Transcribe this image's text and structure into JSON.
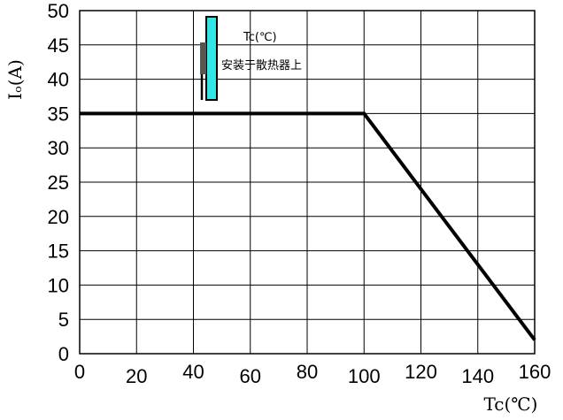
{
  "chart_data": {
    "type": "line",
    "title": "",
    "xlabel": "Tc(℃)",
    "ylabel": "Iₒ(A)",
    "xlim": [
      0,
      160
    ],
    "ylim": [
      0,
      50
    ],
    "x_ticks": [
      0,
      20,
      40,
      60,
      80,
      100,
      120,
      140,
      160
    ],
    "y_ticks": [
      0,
      5,
      10,
      15,
      20,
      25,
      30,
      35,
      40,
      45,
      50
    ],
    "grid": true,
    "series": [
      {
        "x": [
          0,
          100,
          160
        ],
        "y": [
          35,
          35,
          2
        ]
      }
    ],
    "annotations": [
      "Tc(℃)",
      "安装于散热器上"
    ]
  },
  "colors": {
    "line": "#000000",
    "grid": "#000000",
    "heatsink": "#33e6e6",
    "device": "#555555"
  },
  "icons": [
    "device-on-heatsink-icon"
  ]
}
